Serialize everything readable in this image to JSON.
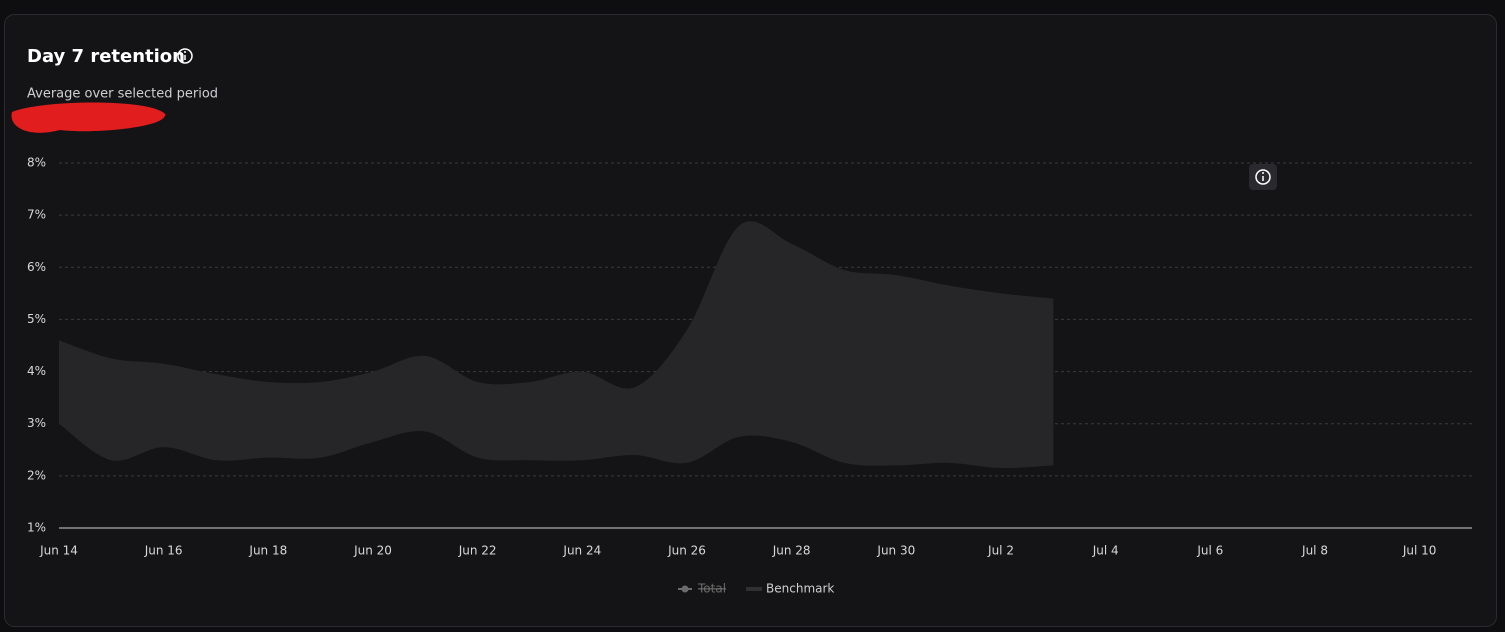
{
  "chart_data": {
    "type": "range-area",
    "title": "Day 7 retention",
    "subtitle": "Average over selected period",
    "categories": [
      "Jun 14",
      null,
      "Jun 16",
      null,
      "Jun 18",
      null,
      "Jun 20",
      null,
      "Jun 22",
      null,
      "Jun 24",
      null,
      "Jun 26",
      null,
      "Jun 28",
      null,
      "Jun 30",
      null,
      "Jul 2",
      null,
      "Jul 4",
      null,
      "Jul 6",
      null,
      "Jul 8",
      null,
      "Jul 10",
      null
    ],
    "series": [
      {
        "name": "Benchmark",
        "color": "#262628",
        "high": [
          4.6,
          4.25,
          4.15,
          3.95,
          3.8,
          3.8,
          4.0,
          4.3,
          3.8,
          3.8,
          4.0,
          3.7,
          4.8,
          6.8,
          6.45,
          5.95,
          5.85,
          5.65,
          5.5,
          5.4,
          null,
          null,
          null,
          null,
          null,
          null,
          null,
          null
        ],
        "low": [
          3.0,
          2.3,
          2.55,
          2.3,
          2.35,
          2.35,
          2.65,
          2.85,
          2.35,
          2.3,
          2.3,
          2.4,
          2.25,
          2.75,
          2.65,
          2.25,
          2.2,
          2.25,
          2.15,
          2.2,
          null,
          null,
          null,
          null,
          null,
          null,
          null,
          null
        ]
      }
    ],
    "legend": [
      {
        "name": "Total",
        "color": "#6b6b6b",
        "hidden": true
      },
      {
        "name": "Benchmark",
        "color": "#303032",
        "hidden": false
      }
    ],
    "ylim": [
      1,
      8
    ],
    "yticks": [
      {
        "value": 1,
        "label": "1%"
      },
      {
        "value": 2,
        "label": "2%"
      },
      {
        "value": 3,
        "label": "3%"
      },
      {
        "value": 4,
        "label": "4%"
      },
      {
        "value": 5,
        "label": "5%"
      },
      {
        "value": 6,
        "label": "6%"
      },
      {
        "value": 7,
        "label": "7%"
      },
      {
        "value": 8,
        "label": "8%"
      }
    ],
    "grid": true
  }
}
